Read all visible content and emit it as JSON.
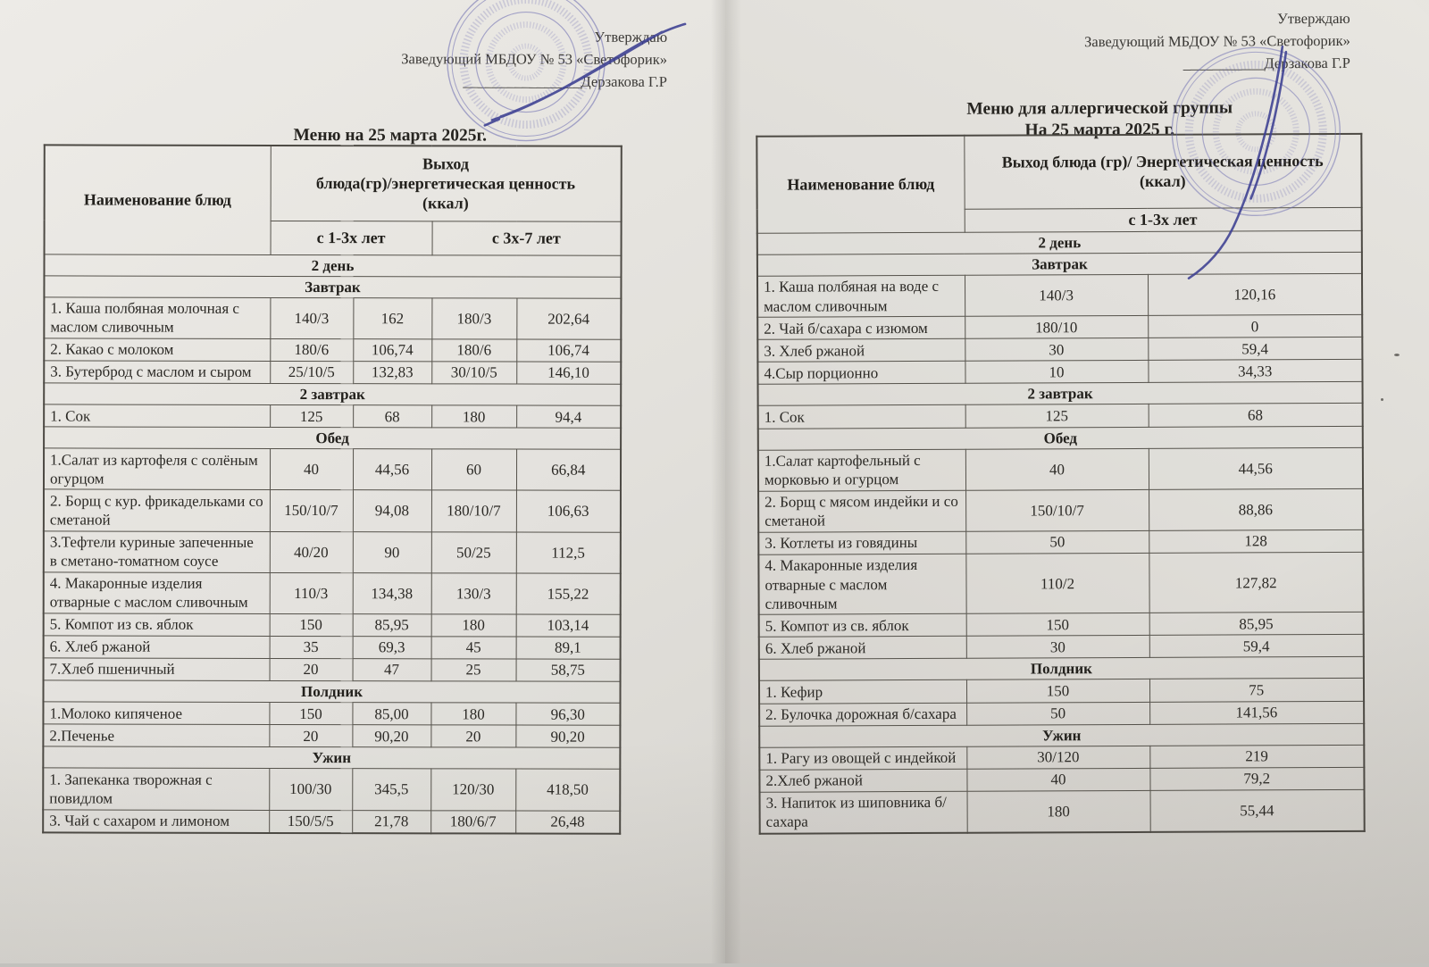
{
  "colors": {
    "stamp": "#6a6ab0",
    "signature": "#3c3f92",
    "table_line": "#55524b",
    "ink": "#2b2925"
  },
  "page_left": {
    "approval": {
      "approved_label": "Утверждаю",
      "head_line": "Заведующий МБДОУ № 53 «Светофорик»",
      "signature_line": "________________Дерзакова Г.Р"
    },
    "title": "Меню на 25 марта  2025г.",
    "table": {
      "header_name": "Наименование блюд",
      "header_output": "Выход\nблюда(гр)/энергетическая ценность\n(ккал)",
      "age_groups": [
        "с 1-3х лет",
        "с 3х-7 лет"
      ],
      "rows": [
        {
          "type": "section",
          "label": "2 день"
        },
        {
          "type": "section",
          "label": "Завтрак"
        },
        {
          "type": "dish",
          "name": "1. Каша полбяная молочная с маслом сливочным",
          "values": [
            "140/3",
            "162",
            "180/3",
            "202,64"
          ]
        },
        {
          "type": "dish",
          "name": "2. Какао с молоком",
          "values": [
            "180/6",
            "106,74",
            "180/6",
            "106,74"
          ]
        },
        {
          "type": "dish",
          "name": "3. Бутерброд с маслом и сыром",
          "values": [
            "25/10/5",
            "132,83",
            "30/10/5",
            "146,10"
          ]
        },
        {
          "type": "section",
          "label": "2  завтрак"
        },
        {
          "type": "dish",
          "name": "1. Сок",
          "values": [
            "125",
            "68",
            "180",
            "94,4"
          ]
        },
        {
          "type": "section",
          "label": "Обед"
        },
        {
          "type": "dish",
          "name": "1.Салат из картофеля с солёным огурцом",
          "values": [
            "40",
            "44,56",
            "60",
            "66,84"
          ]
        },
        {
          "type": "dish",
          "name": "2. Борщ с кур. фрикадельками со сметаной",
          "values": [
            "150/10/7",
            "94,08",
            "180/10/7",
            "106,63"
          ]
        },
        {
          "type": "dish",
          "name": "3.Тефтели куриные запеченные в сметано-томатном соусе",
          "values": [
            "40/20",
            "90",
            "50/25",
            "112,5"
          ]
        },
        {
          "type": "dish",
          "name": "4. Макаронные изделия отварные с маслом сливочным",
          "values": [
            "110/3",
            "134,38",
            "130/3",
            "155,22"
          ]
        },
        {
          "type": "dish",
          "name": "5. Компот из св. яблок",
          "values": [
            "150",
            "85,95",
            "180",
            "103,14"
          ]
        },
        {
          "type": "dish",
          "name": "6. Хлеб ржаной",
          "values": [
            "35",
            "69,3",
            "45",
            "89,1"
          ]
        },
        {
          "type": "dish",
          "name": "7.Хлеб пшеничный",
          "values": [
            "20",
            "47",
            "25",
            "58,75"
          ]
        },
        {
          "type": "section",
          "label": "Полдник"
        },
        {
          "type": "dish",
          "name": "1.Молоко кипяченое",
          "values": [
            "150",
            "85,00",
            "180",
            "96,30"
          ]
        },
        {
          "type": "dish",
          "name": "2.Печенье",
          "values": [
            "20",
            "90,20",
            "20",
            "90,20"
          ]
        },
        {
          "type": "section",
          "label": "Ужин"
        },
        {
          "type": "dish",
          "name": "1. Запеканка творожная с повидлом",
          "values": [
            "100/30",
            "345,5",
            "120/30",
            "418,50"
          ]
        },
        {
          "type": "dish",
          "name": "3. Чай с сахаром и лимоном",
          "values": [
            "150/5/5",
            "21,78",
            "180/6/7",
            "26,48"
          ]
        }
      ]
    }
  },
  "page_right": {
    "approval": {
      "approved_label": "Утверждаю",
      "head_line": "Заведующий МБДОУ № 53 «Светофорик»",
      "signature_line": "___________Дерзакова Г.Р"
    },
    "title_line1": "Меню для аллергической группы",
    "title_line2": "На 25 марта 2025 г.",
    "table": {
      "header_name": "Наименование блюд",
      "header_output": "Выход блюда (гр)/ Энергетическая ценность\n(ккал)",
      "age_groups": [
        "с 1-3х лет"
      ],
      "rows": [
        {
          "type": "section",
          "label": "2 день"
        },
        {
          "type": "section",
          "label": "Завтрак"
        },
        {
          "type": "dish",
          "name": "1. Каша полбяная на воде с маслом сливочным",
          "values": [
            "140/3",
            "120,16"
          ]
        },
        {
          "type": "dish",
          "name": "2. Чай б/сахара с изюмом",
          "values": [
            "180/10",
            "0"
          ]
        },
        {
          "type": "dish",
          "name": "3. Хлеб ржаной",
          "values": [
            "30",
            "59,4"
          ]
        },
        {
          "type": "dish",
          "name": "4.Сыр порционно",
          "values": [
            "10",
            "34,33"
          ]
        },
        {
          "type": "section",
          "label": "2 завтрак"
        },
        {
          "type": "dish",
          "name": "1. Сок",
          "values": [
            "125",
            "68"
          ]
        },
        {
          "type": "section",
          "label": "Обед"
        },
        {
          "type": "dish",
          "name": "1.Салат картофельный с морковью и огурцом",
          "values": [
            "40",
            "44,56"
          ]
        },
        {
          "type": "dish",
          "name": "2. Борщ с мясом индейки и со сметаной",
          "values": [
            "150/10/7",
            "88,86"
          ]
        },
        {
          "type": "dish",
          "name": "3. Котлеты из говядины",
          "values": [
            "50",
            "128"
          ]
        },
        {
          "type": "dish",
          "name": "4. Макаронные изделия отварные с маслом сливочным",
          "values": [
            "110/2",
            "127,82"
          ]
        },
        {
          "type": "dish",
          "name": "5. Компот из св. яблок",
          "values": [
            "150",
            "85,95"
          ]
        },
        {
          "type": "dish",
          "name": "6. Хлеб ржаной",
          "values": [
            "30",
            "59,4"
          ]
        },
        {
          "type": "section",
          "label": "Полдник"
        },
        {
          "type": "dish",
          "name": "1. Кефир",
          "values": [
            "150",
            "75"
          ]
        },
        {
          "type": "dish",
          "name": "2. Булочка дорожная б/сахара",
          "values": [
            "50",
            "141,56"
          ]
        },
        {
          "type": "section",
          "label": "Ужин"
        },
        {
          "type": "dish",
          "name": "1. Рагу из овощей с индейкой",
          "values": [
            "30/120",
            "219"
          ]
        },
        {
          "type": "dish",
          "name": "2.Хлеб ржаной",
          "values": [
            "40",
            "79,2"
          ]
        },
        {
          "type": "dish",
          "name": "3. Напиток из шиповника б/сахара",
          "values": [
            "180",
            "55,44"
          ]
        }
      ]
    }
  }
}
